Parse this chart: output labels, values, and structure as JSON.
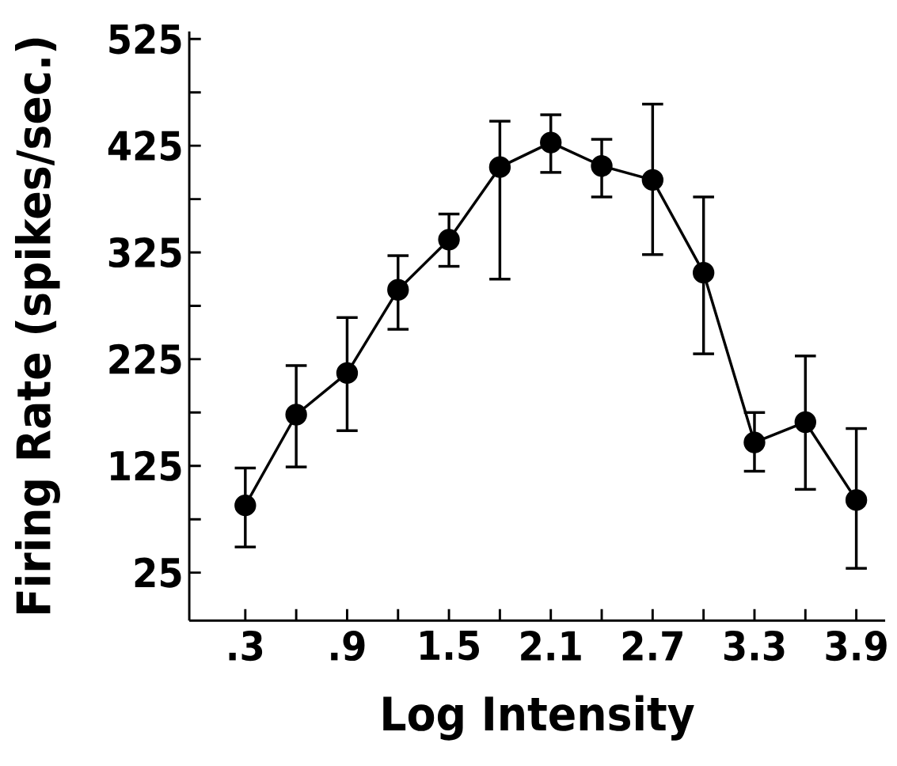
{
  "chart_data": {
    "type": "line",
    "xlabel": "Log Intensity",
    "ylabel": "Firing Rate (spikes/sec.)",
    "x": [
      0.3,
      0.6,
      0.9,
      1.2,
      1.5,
      1.8,
      2.1,
      2.4,
      2.7,
      3.0,
      3.3,
      3.6,
      3.9
    ],
    "values": [
      88,
      173,
      212,
      290,
      337,
      405,
      428,
      406,
      393,
      306,
      147,
      166,
      93
    ],
    "errors": [
      [
        49,
        123
      ],
      [
        124,
        219
      ],
      [
        158,
        264
      ],
      [
        253,
        322
      ],
      [
        312,
        361
      ],
      [
        300,
        448
      ],
      [
        400,
        454
      ],
      [
        377,
        431
      ],
      [
        323,
        464
      ],
      [
        230,
        377
      ],
      [
        120,
        175
      ],
      [
        103,
        228
      ],
      [
        29,
        160
      ]
    ],
    "color": "#000000",
    "marker": "circle",
    "line_style": "solid",
    "xlim": [
      -0.03,
      4.07
    ],
    "ylim": [
      -20,
      532
    ],
    "xticks": [
      {
        "value": 0.3,
        "label": ".3"
      },
      {
        "value": 0.6,
        "label": null
      },
      {
        "value": 0.9,
        "label": ".9"
      },
      {
        "value": 1.2,
        "label": null
      },
      1.5,
      {
        "value": 1.8,
        "label": null
      },
      2.1,
      {
        "value": 2.4,
        "label": null
      },
      2.7,
      {
        "value": 3.0,
        "label": null
      },
      3.3,
      {
        "value": 3.6,
        "label": null
      },
      3.9
    ],
    "yticks": [
      25,
      {
        "value": 75,
        "label": null
      },
      125,
      {
        "value": 175,
        "label": null
      },
      225,
      {
        "value": 275,
        "label": null
      },
      325,
      {
        "value": 375,
        "label": null
      },
      425,
      {
        "value": 475,
        "label": null
      },
      525
    ]
  }
}
